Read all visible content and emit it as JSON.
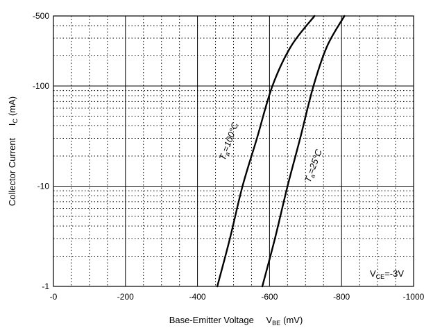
{
  "chart_data": {
    "type": "line",
    "title": "",
    "x_axis": {
      "label_main": "Base-Emitter Voltage",
      "label_symbol": "V",
      "label_subscript": "BE",
      "label_unit": "(mV)",
      "ticks": [
        "-0",
        "-200",
        "-400",
        "-600",
        "-800",
        "-1000"
      ],
      "range": [
        0,
        -1000
      ],
      "scale": "linear"
    },
    "y_axis": {
      "label_main": "Collector Current",
      "label_symbol": "I",
      "label_subscript": "C",
      "label_unit": "(mA)",
      "ticks": [
        "-1",
        "-10",
        "-100",
        "-500"
      ],
      "range": [
        -1,
        -500
      ],
      "scale": "log"
    },
    "grid": true,
    "series": [
      {
        "name": "Ta=100°C",
        "label_main": "T",
        "label_sub": "a",
        "label_rest": "=100°C",
        "points": [
          [
            -455,
            -1
          ],
          [
            -490,
            -3
          ],
          [
            -525,
            -10
          ],
          [
            -565,
            -30
          ],
          [
            -608,
            -100
          ],
          [
            -660,
            -250
          ],
          [
            -725,
            -500
          ]
        ]
      },
      {
        "name": "Ta=25°C",
        "label_main": "T",
        "label_sub": "a",
        "label_rest": "=25°C",
        "points": [
          [
            -580,
            -1
          ],
          [
            -615,
            -3
          ],
          [
            -650,
            -10
          ],
          [
            -685,
            -30
          ],
          [
            -722,
            -100
          ],
          [
            -760,
            -250
          ],
          [
            -808,
            -500
          ]
        ]
      }
    ],
    "annotation": {
      "main": "V",
      "sub": "CE",
      "rest": "=-3V"
    }
  }
}
